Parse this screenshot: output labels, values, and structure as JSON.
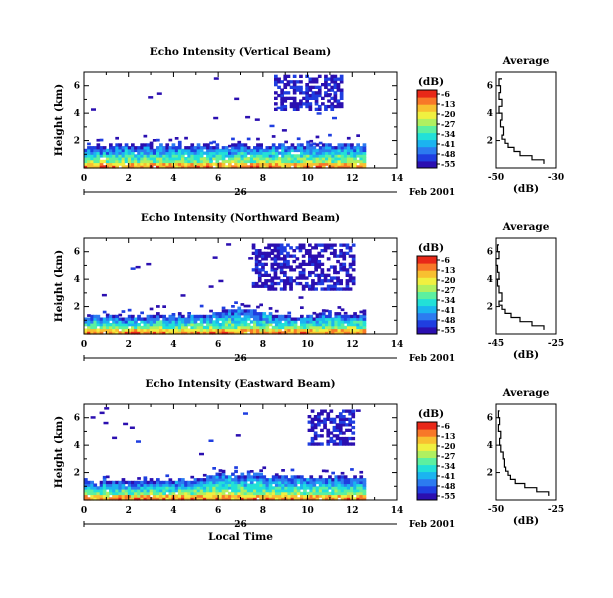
{
  "common": {
    "time_ticks": [
      "0",
      "2",
      "4",
      "6",
      "8",
      "10",
      "12",
      "14"
    ],
    "height_ticks": [
      "2",
      "4",
      "6"
    ],
    "colorbar_unit": "(dB)",
    "colorbar_ticks": [
      "-6",
      "-13",
      "-20",
      "-27",
      "-34",
      "-41",
      "-48",
      "-55"
    ],
    "colorbar_colors": [
      "#2b0fb0",
      "#1f3ee0",
      "#2c7bf0",
      "#1bb4f0",
      "#22e0d8",
      "#5cf0a0",
      "#b0f060",
      "#f0f040",
      "#f8c030",
      "#f87828",
      "#e82818"
    ],
    "average_title": "Average",
    "average_xlabel": "(dB)",
    "day_label": "26",
    "month_label": "Feb 2001",
    "ylabel": "Height (km)",
    "bottom_xlabel": "Local Time"
  },
  "chart_data": [
    {
      "type": "heatmap",
      "title": "Echo Intensity (Vertical Beam)",
      "xlabel": "",
      "ylabel": "Height (km)",
      "xlim": [
        0,
        14
      ],
      "ylim": [
        0,
        7
      ],
      "value_range_db": [
        -55,
        -6
      ],
      "upper_echo": {
        "x_range": [
          8.5,
          11.5
        ],
        "y_range": [
          4.2,
          6.8
        ]
      },
      "boundary_layer_top_km": [
        [
          0,
          1.5
        ],
        [
          4,
          1.6
        ],
        [
          8,
          1.6
        ],
        [
          12.5,
          1.7
        ]
      ],
      "data_end_time": 12.5,
      "profile": {
        "xlabel": "(dB)",
        "xlim": [
          -50,
          -30
        ],
        "xticks": [
          "-50",
          "-30"
        ],
        "height_km": [
          0.3,
          0.6,
          0.9,
          1.2,
          1.5,
          1.8,
          2.1,
          2.4,
          3.0,
          3.5,
          4.0,
          4.5,
          5.0,
          5.5,
          6.0,
          6.5
        ],
        "db": [
          -34,
          -38,
          -42,
          -44,
          -46,
          -47,
          -48,
          -47.5,
          -48.5,
          -48,
          -49,
          -48,
          -49,
          -48.5,
          -49,
          -48
        ]
      }
    },
    {
      "type": "heatmap",
      "title": "Echo Intensity (Northward Beam)",
      "xlabel": "",
      "ylabel": "Height (km)",
      "xlim": [
        0,
        14
      ],
      "ylim": [
        0,
        7
      ],
      "value_range_db": [
        -55,
        -6
      ],
      "upper_echo": {
        "x_range": [
          7.5,
          12
        ],
        "y_range": [
          3.2,
          6.5
        ]
      },
      "boundary_layer_top_km": [
        [
          0,
          1.2
        ],
        [
          5,
          1.3
        ],
        [
          7,
          1.8
        ],
        [
          9,
          1.2
        ],
        [
          12.5,
          1.4
        ]
      ],
      "data_end_time": 12.5,
      "profile": {
        "xlabel": "(dB)",
        "xlim": [
          -45,
          -25
        ],
        "xticks": [
          "-45",
          "-25"
        ],
        "height_km": [
          0.3,
          0.6,
          0.9,
          1.2,
          1.5,
          1.8,
          2.1,
          2.4,
          3.0,
          3.5,
          4.0,
          4.5,
          5.0,
          5.5,
          6.0,
          6.5
        ],
        "db": [
          -29,
          -33,
          -37,
          -40,
          -42,
          -43,
          -44,
          -43,
          -44,
          -44.5,
          -44,
          -44.5,
          -45,
          -44,
          -44.5,
          -44
        ]
      }
    },
    {
      "type": "heatmap",
      "title": "Echo Intensity (Eastward Beam)",
      "xlabel": "Local Time",
      "ylabel": "Height (km)",
      "xlim": [
        0,
        14
      ],
      "ylim": [
        0,
        7
      ],
      "value_range_db": [
        -55,
        -6
      ],
      "upper_echo": {
        "x_range": [
          10,
          12
        ],
        "y_range": [
          4.0,
          6.5
        ]
      },
      "boundary_layer_top_km": [
        [
          0,
          1.3
        ],
        [
          5,
          1.4
        ],
        [
          6,
          2.0
        ],
        [
          8,
          1.7
        ],
        [
          12.5,
          1.6
        ]
      ],
      "data_end_time": 12.5,
      "profile": {
        "xlabel": "(dB)",
        "xlim": [
          -50,
          -25
        ],
        "xticks": [
          "-50",
          "-25"
        ],
        "height_km": [
          0.3,
          0.6,
          0.9,
          1.2,
          1.5,
          1.8,
          2.1,
          2.4,
          3.0,
          3.5,
          4.0,
          4.5,
          5.0,
          5.5,
          6.0,
          6.5
        ],
        "db": [
          -28,
          -33,
          -38,
          -42,
          -44,
          -45,
          -46,
          -46.5,
          -47,
          -48,
          -48.5,
          -48,
          -49,
          -48.5,
          -49,
          -48.5
        ]
      }
    }
  ]
}
